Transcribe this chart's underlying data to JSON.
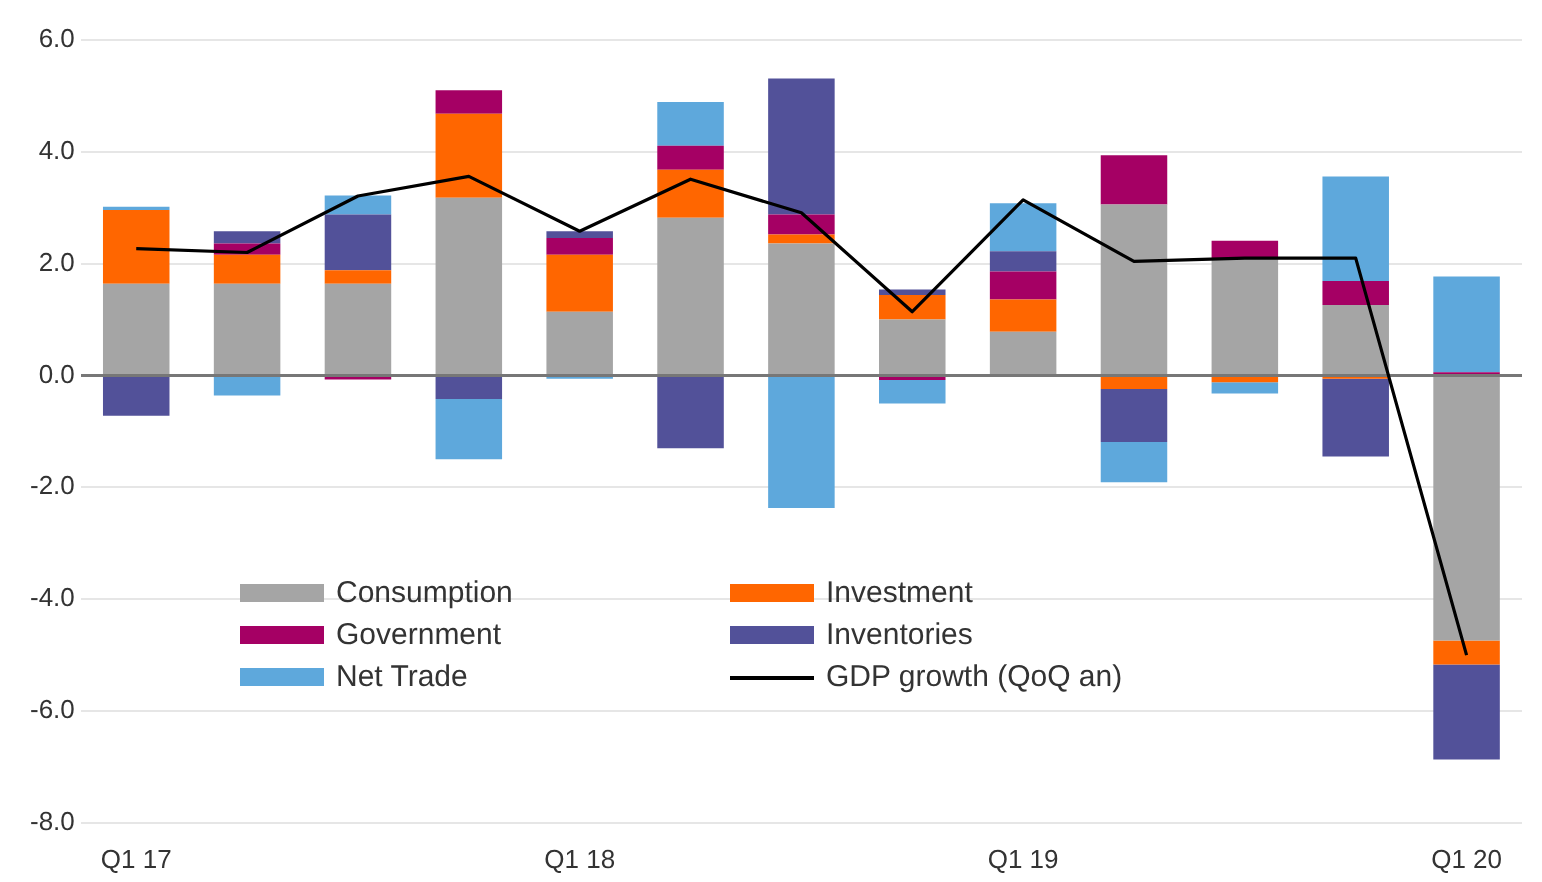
{
  "chart_data": {
    "type": "bar",
    "stacked": true,
    "categories": [
      "Q1 17",
      null,
      null,
      null,
      "Q1 18",
      null,
      null,
      null,
      "Q1 19",
      null,
      null,
      null,
      "Q1 20"
    ],
    "series": [
      {
        "name": "Consumption",
        "color": "#a5a5a5",
        "values": [
          1.64,
          1.64,
          1.64,
          3.18,
          1.14,
          2.82,
          2.36,
          1.0,
          0.78,
          3.06,
          2.1,
          1.26,
          -4.74
        ]
      },
      {
        "name": "Investment",
        "color": "#ff6600",
        "values": [
          1.32,
          0.52,
          0.24,
          1.5,
          1.02,
          0.86,
          0.16,
          0.44,
          0.58,
          -0.24,
          -0.12,
          -0.06,
          -0.43
        ]
      },
      {
        "name": "Government",
        "color": "#a50064",
        "values": [
          0.0,
          0.2,
          -0.07,
          0.42,
          0.3,
          0.43,
          0.36,
          -0.08,
          0.5,
          0.88,
          0.31,
          0.43,
          0.06
        ]
      },
      {
        "name": "Inventories",
        "color": "#525199",
        "values": [
          -0.72,
          0.22,
          1.0,
          -0.42,
          0.12,
          -1.3,
          2.43,
          0.1,
          0.36,
          -0.95,
          0.0,
          -1.39,
          -1.7
        ]
      },
      {
        "name": "Net Trade",
        "color": "#5ea8dc",
        "values": [
          0.06,
          -0.36,
          0.34,
          -1.08,
          -0.06,
          0.78,
          -2.37,
          -0.42,
          0.86,
          -0.72,
          -0.2,
          1.87,
          1.71
        ]
      },
      {
        "name": "GDP growth (QoQ an)",
        "type": "line",
        "color": "#000000",
        "values": [
          2.27,
          2.2,
          3.21,
          3.56,
          2.58,
          3.51,
          2.91,
          1.14,
          3.14,
          2.04,
          2.1,
          2.1,
          -5.0
        ]
      }
    ],
    "ylim": [
      -8,
      6
    ],
    "yticks": [
      {
        "value": -8,
        "label": "-8.0"
      },
      {
        "value": -6,
        "label": "-6.0"
      },
      {
        "value": -4,
        "label": "-4.0"
      },
      {
        "value": -2,
        "label": "-2.0"
      },
      {
        "value": 0,
        "label": "0.0"
      },
      {
        "value": 2,
        "label": "2.0"
      },
      {
        "value": 4,
        "label": "4.0"
      },
      {
        "value": 6,
        "label": "6.0"
      }
    ],
    "grid": "y",
    "legend": "bottom left",
    "marker": "none",
    "line_style": "solid"
  }
}
